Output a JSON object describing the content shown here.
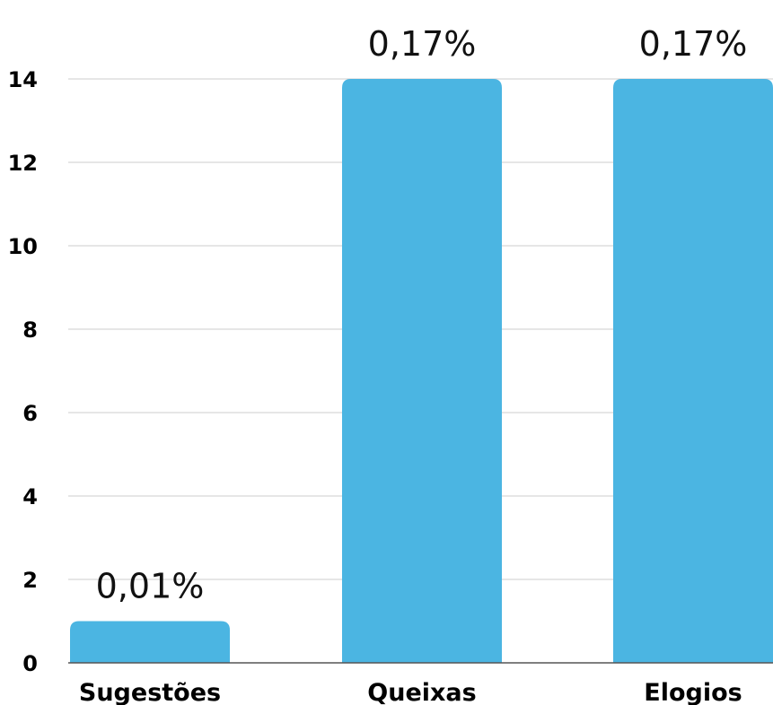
{
  "chart_data": {
    "type": "bar",
    "title": "",
    "xlabel": "",
    "ylabel": "",
    "categories": [
      "Sugestões",
      "Queixas",
      "Elogios"
    ],
    "values": [
      1,
      14,
      14
    ],
    "data_labels": [
      "0,01%",
      "0,17%",
      "0,17%"
    ],
    "ylim": [
      0,
      14
    ],
    "y_ticks": [
      0,
      2,
      4,
      6,
      8,
      10,
      12,
      14
    ],
    "grid": true,
    "legend": "none",
    "bar_color": "#4BB5E2",
    "grid_color": "#CCCCCC",
    "axis_color": "#555555"
  }
}
